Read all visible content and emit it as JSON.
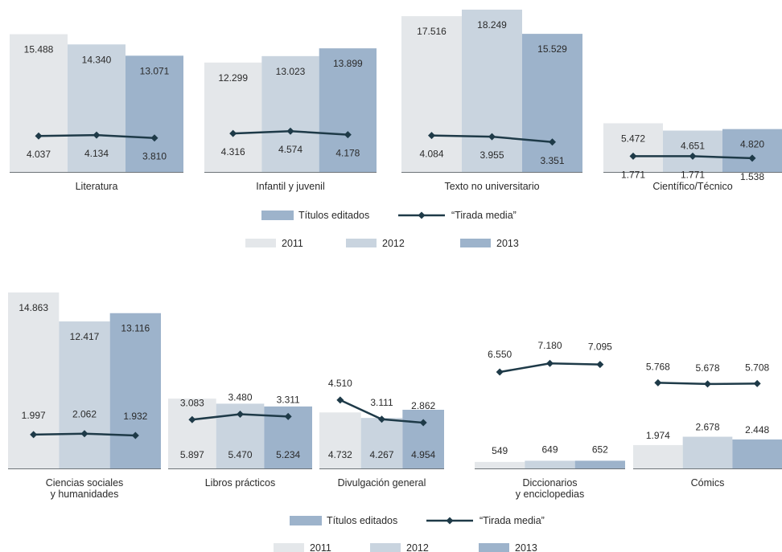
{
  "colors": {
    "bar_2011": "#e4e7ea",
    "bar_2012": "#c9d4df",
    "bar_2013": "#9db3cb",
    "line": "#1e3a48",
    "baseline": "#6d7378",
    "text": "#2a2a2a"
  },
  "legend": {
    "bars_label": "Títulos editados",
    "line_label": "“Tirada media”",
    "years": [
      "2011",
      "2012",
      "2013"
    ]
  },
  "chart_data": [
    {
      "type": "bar",
      "combo": "bar+line",
      "categories": [
        "Literatura",
        "Infantil y juvenil",
        "Texto no universitario",
        "Científico/Técnico"
      ],
      "series": [
        {
          "name": "2011",
          "values": [
            15488,
            12299,
            17516,
            5472
          ]
        },
        {
          "name": "2012",
          "values": [
            14340,
            13023,
            18249,
            4651
          ]
        },
        {
          "name": "2013",
          "values": [
            13071,
            13899,
            15529,
            4820
          ]
        }
      ],
      "line_series": [
        {
          "name": "“Tirada media”",
          "values": [
            [
              4037,
              4134,
              3810
            ],
            [
              4316,
              4574,
              4178
            ],
            [
              4084,
              3955,
              3351
            ],
            [
              1771,
              1771,
              1538
            ]
          ]
        }
      ],
      "bar_labels": [
        [
          "15.488",
          "14.340",
          "13.071"
        ],
        [
          "12.299",
          "13.023",
          "13.899"
        ],
        [
          "17.516",
          "18.249",
          "15.529"
        ],
        [
          "5.472",
          "4.651",
          "4.820"
        ]
      ],
      "line_labels": [
        [
          "4.037",
          "4.134",
          "3.810"
        ],
        [
          "4.316",
          "4.574",
          "4.178"
        ],
        [
          "4.084",
          "3.955",
          "3.351"
        ],
        [
          "1.771",
          "1.771",
          "1.538"
        ]
      ],
      "ylim": [
        0,
        18249
      ],
      "grid": false,
      "legend": "bottom"
    },
    {
      "type": "bar",
      "combo": "bar+line",
      "categories": [
        "Ciencias sociales y humanidades",
        "Libros prácticos",
        "Divulgación general",
        "Diccionarios y enciclopedias",
        "Cómics"
      ],
      "category_lines": [
        [
          "Ciencias sociales",
          "y humanidades"
        ],
        [
          "Libros prácticos"
        ],
        [
          "Divulgación general"
        ],
        [
          "Diccionarios",
          "y enciclopedias"
        ],
        [
          "Cómics"
        ]
      ],
      "series": [
        {
          "name": "2011",
          "values": [
            14863,
            5897,
            4732,
            549,
            1974
          ]
        },
        {
          "name": "2012",
          "values": [
            12417,
            5470,
            4267,
            649,
            2678
          ]
        },
        {
          "name": "2013",
          "values": [
            13116,
            5234,
            4954,
            652,
            2448
          ]
        }
      ],
      "line_series": [
        {
          "name": "“Tirada media”",
          "values": [
            [
              1997,
              2062,
              1932
            ],
            [
              3083,
              3480,
              3311
            ],
            [
              4510,
              3111,
              2862
            ],
            [
              6550,
              7180,
              7095
            ],
            [
              5768,
              5678,
              5708
            ]
          ]
        }
      ],
      "bar_labels": [
        [
          "14.863",
          "12.417",
          "13.116"
        ],
        [
          "5.897",
          "5.470",
          "5.234"
        ],
        [
          "4.732",
          "4.267",
          "4.954"
        ],
        [
          "549",
          "649",
          "652"
        ],
        [
          "1.974",
          "2.678",
          "2.448"
        ]
      ],
      "line_labels": [
        [
          "1.997",
          "2.062",
          "1.932"
        ],
        [
          "3.083",
          "3.480",
          "3.311"
        ],
        [
          "4.510",
          "3.111",
          "2.862"
        ],
        [
          "6.550",
          "7.180",
          "7.095"
        ],
        [
          "5.768",
          "5.678",
          "5.708"
        ]
      ],
      "grid": false,
      "legend": "bottom"
    }
  ]
}
